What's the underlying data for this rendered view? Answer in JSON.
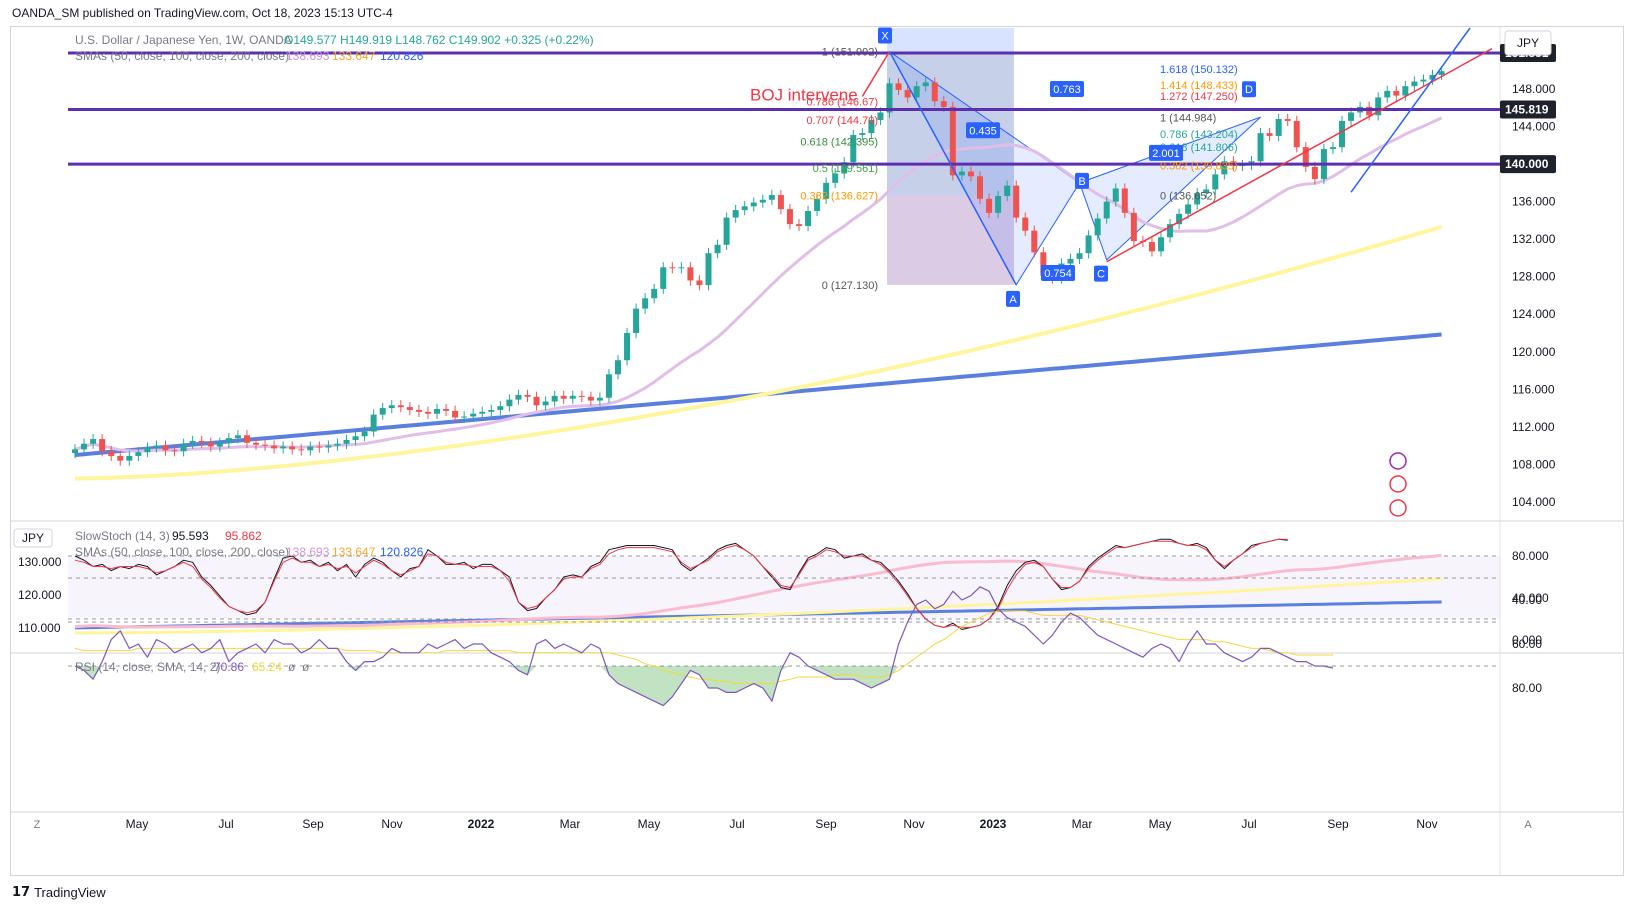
{
  "publisher_line": "OANDA_SM published on TradingView.com, Oct 18, 2023 15:13 UTC-4",
  "footer_brand": "TradingView",
  "currency_button": "JPY",
  "legend": {
    "main_title": "U.S. Dollar / Japanese Yen, 1W, OANDA",
    "ohlc": {
      "o_label": "O",
      "o": "149.577",
      "h_label": "H",
      "h": "149.919",
      "l_label": "L",
      "l": "148.762",
      "c_label": "C",
      "c": "149.902",
      "chg": "+0.325 (+0.22%)"
    },
    "sma_label": "SMAs (50, close, 100, close, 200, close)",
    "sma_values": [
      "138.693",
      "133.647",
      "120.826"
    ],
    "stoch_label": "SlowStoch (14, 3)",
    "stoch_values": [
      "95.593",
      "95.862"
    ],
    "rsi_label": "RSI (14, close, SMA, 14, 2)",
    "rsi_values": [
      "70.86",
      "65.24",
      "ø",
      "ø"
    ],
    "jpy_small": "JPY"
  },
  "colors": {
    "up": "#26a69a",
    "down": "#ef5350",
    "sma50": "#e1bee7",
    "sma100": "#fff59d",
    "sma200": "#5b7fde",
    "hline": "#5b2fae",
    "trend_red": "#f23645",
    "trend_blue": "#2962ff",
    "stoch_k": "#131722",
    "stoch_d": "#f23645",
    "rsi": "#7e57c2",
    "rsi_ma": "#f5d63b"
  },
  "chart_data": [
    {
      "type": "candlestick",
      "title": "U.S. Dollar / Japanese Yen, 1W, OANDA",
      "ylim": [
        102.5,
        154.5
      ],
      "y_ticks": [
        104,
        108,
        112,
        116,
        120,
        124,
        128,
        132,
        136,
        140,
        144,
        148
      ],
      "x_ticks": [
        "May",
        "Jul",
        "Sep",
        "Nov",
        "2022",
        "Mar",
        "May",
        "Jul",
        "Sep",
        "Nov",
        "2023",
        "Mar",
        "May",
        "Jul",
        "Sep",
        "Nov"
      ],
      "candles_close": [
        109.6,
        110.2,
        110.7,
        109.4,
        108.9,
        108.4,
        108.9,
        109.3,
        109.8,
        110.0,
        109.5,
        109.4,
        110.2,
        110.5,
        110.3,
        109.9,
        110.3,
        110.8,
        111.1,
        110.3,
        110.1,
        110.0,
        109.7,
        109.9,
        109.6,
        109.5,
        109.9,
        109.8,
        110.0,
        110.2,
        110.6,
        111.0,
        111.5,
        113.3,
        114.0,
        114.3,
        114.1,
        113.8,
        113.6,
        113.4,
        113.9,
        113.7,
        113.0,
        113.1,
        113.4,
        113.6,
        113.8,
        114.2,
        114.9,
        115.4,
        115.2,
        114.3,
        114.7,
        115.3,
        115.0,
        115.3,
        115.2,
        114.8,
        115.1,
        117.6,
        119.1,
        122.0,
        124.6,
        125.7,
        126.7,
        129.0,
        128.9,
        129.0,
        127.6,
        127.1,
        130.5,
        131.4,
        134.3,
        135.1,
        135.5,
        135.9,
        136.2,
        136.7,
        135.2,
        133.6,
        133.4,
        135.0,
        136.3,
        138.0,
        139.0,
        140.2,
        143.1,
        143.3,
        144.7,
        145.5,
        148.6,
        147.9,
        147.1,
        148.3,
        148.7,
        146.7,
        146.1,
        138.8,
        139.2,
        138.7,
        136.3,
        134.8,
        136.6,
        137.7,
        134.3,
        132.9,
        130.6,
        128.1,
        127.8,
        129.4,
        129.9,
        130.5,
        132.4,
        134.2,
        136.0,
        137.4,
        134.8,
        131.8,
        131.7,
        130.7,
        132.2,
        133.6,
        134.7,
        135.7,
        136.9,
        137.3,
        138.9,
        140.3,
        139.8,
        139.9,
        140.3,
        143.3,
        143.0,
        144.8,
        144.6,
        141.8,
        139.7,
        138.4,
        141.6,
        141.8,
        144.6,
        145.5,
        146.1,
        145.2,
        147.1,
        147.8,
        147.3,
        148.3,
        148.8,
        149.0,
        149.5,
        149.9
      ],
      "horizontal_levels": [
        "151.831",
        "145.819",
        "140.000"
      ],
      "annotation": "BOJ intervene",
      "harmonic_points": [
        "X",
        "A",
        "B",
        "C",
        "D"
      ],
      "harmonic_ratios": [
        "0.763",
        "0.435",
        "0.754",
        "2.001"
      ],
      "fib_levels_left": [
        "1 (151.992)",
        "0.786 (146.67)",
        "0.707 (144.70)",
        "0.618 (142.395)",
        "0.5 (139.561)",
        "0.382 (136.627)",
        "0 (127.130)"
      ],
      "fib_levels_right": [
        "1.618 (150.132)",
        "1.414 (148.433)",
        "1.272 (147.250)",
        "1 (144.984)",
        "0.786 (143.204)",
        "0.618 (141.806)",
        "0.382 (139.835)",
        "0 (136.652)"
      ]
    },
    {
      "type": "line",
      "title": "SlowStoch (14, 3)",
      "ylim": [
        0,
        100
      ],
      "right_ticks": [
        "80.000",
        "40.000",
        "0.000"
      ],
      "left_ticks": [
        "130.000",
        "120.000",
        "110.000"
      ],
      "series": [
        {
          "name": "%K",
          "values": [
            80,
            76,
            70,
            72,
            66,
            70,
            68,
            72,
            70,
            62,
            66,
            70,
            76,
            74,
            60,
            52,
            42,
            32,
            28,
            24,
            26,
            36,
            58,
            78,
            80,
            74,
            76,
            70,
            74,
            66,
            72,
            60,
            72,
            78,
            74,
            66,
            60,
            68,
            70,
            86,
            80,
            72,
            72,
            74,
            68,
            72,
            72,
            66,
            60,
            36,
            28,
            30,
            40,
            48,
            60,
            62,
            60,
            70,
            74,
            86,
            88,
            90,
            90,
            90,
            90,
            88,
            86,
            72,
            66,
            72,
            78,
            86,
            90,
            92,
            86,
            80,
            70,
            60,
            50,
            48,
            64,
            78,
            82,
            88,
            86,
            78,
            80,
            82,
            76,
            74,
            66,
            56,
            44,
            30,
            20,
            14,
            12,
            16,
            10,
            12,
            14,
            20,
            32,
            52,
            66,
            74,
            76,
            70,
            58,
            48,
            50,
            56,
            70,
            78,
            84,
            90,
            88,
            90,
            92,
            94,
            96,
            96,
            92,
            90,
            92,
            88,
            76,
            68,
            76,
            82,
            90,
            92,
            94,
            96,
            95
          ]
        },
        {
          "name": "%D",
          "values": [
            76,
            74,
            70,
            70,
            68,
            70,
            70,
            70,
            68,
            64,
            66,
            70,
            74,
            70,
            58,
            50,
            40,
            32,
            28,
            26,
            28,
            36,
            56,
            74,
            78,
            74,
            74,
            70,
            72,
            68,
            70,
            64,
            70,
            76,
            72,
            66,
            62,
            66,
            70,
            82,
            80,
            74,
            72,
            72,
            70,
            70,
            70,
            66,
            56,
            36,
            30,
            32,
            40,
            48,
            58,
            60,
            60,
            68,
            72,
            82,
            86,
            88,
            88,
            88,
            88,
            86,
            84,
            74,
            68,
            72,
            76,
            84,
            88,
            90,
            86,
            80,
            70,
            62,
            52,
            50,
            62,
            76,
            80,
            86,
            84,
            80,
            80,
            80,
            76,
            72,
            64,
            54,
            42,
            30,
            20,
            14,
            12,
            14,
            12,
            12,
            14,
            20,
            30,
            48,
            62,
            72,
            74,
            70,
            58,
            50,
            50,
            56,
            68,
            76,
            82,
            88,
            88,
            90,
            92,
            94,
            94,
            94,
            92,
            90,
            90,
            86,
            76,
            70,
            76,
            82,
            88,
            92,
            94,
            96,
            96
          ]
        }
      ]
    },
    {
      "type": "line",
      "title": "RSI (14, close, SMA, 14, 2)",
      "ylim": [
        30,
        90
      ],
      "right_ticks": [
        "80.00",
        "60.00",
        "40.00"
      ],
      "series": [
        {
          "name": "RSI",
          "values": [
            70,
            72,
            76,
            68,
            58,
            54,
            62,
            60,
            66,
            58,
            60,
            64,
            62,
            60,
            64,
            62,
            58,
            68,
            64,
            62,
            60,
            64,
            58,
            60,
            60,
            64,
            62,
            58,
            62,
            62,
            68,
            72,
            68,
            68,
            66,
            62,
            64,
            64,
            64,
            60,
            62,
            60,
            58,
            62,
            60,
            60,
            64,
            66,
            68,
            72,
            74,
            60,
            58,
            62,
            60,
            62,
            64,
            60,
            62,
            74,
            78,
            80,
            82,
            84,
            86,
            88,
            84,
            78,
            72,
            74,
            80,
            80,
            82,
            82,
            80,
            78,
            80,
            86,
            72,
            64,
            66,
            70,
            72,
            74,
            76,
            76,
            76,
            78,
            80,
            78,
            76,
            60,
            50,
            42,
            40,
            44,
            42,
            36,
            40,
            38,
            34,
            36,
            44,
            48,
            50,
            52,
            56,
            60,
            56,
            50,
            46,
            48,
            52,
            56,
            58,
            60,
            62,
            64,
            66,
            62,
            60,
            62,
            68,
            60,
            54,
            60,
            60,
            64,
            66,
            68,
            66,
            62,
            62,
            64,
            66,
            68,
            68,
            70,
            70,
            71
          ]
        },
        {
          "name": "SMA",
          "values": [
            62,
            63,
            63,
            63,
            63,
            63,
            63,
            62,
            62,
            62,
            62,
            62,
            62,
            62,
            62,
            62,
            62,
            62,
            62,
            62,
            62,
            62,
            62,
            62,
            62,
            62,
            62,
            62,
            62,
            62,
            63,
            63,
            63,
            63,
            64,
            64,
            64,
            64,
            64,
            64,
            64,
            63,
            63,
            63,
            63,
            63,
            63,
            63,
            63,
            64,
            64,
            64,
            64,
            64,
            64,
            64,
            64,
            64,
            64,
            64,
            65,
            66,
            67,
            69,
            70,
            72,
            73,
            74,
            75,
            76,
            76,
            77,
            77,
            78,
            78,
            78,
            78,
            78,
            77,
            76,
            75,
            75,
            75,
            75,
            74,
            74,
            74,
            75,
            75,
            75,
            74,
            72,
            69,
            66,
            63,
            60,
            58,
            55,
            52,
            50,
            48,
            46,
            45,
            45,
            45,
            45,
            46,
            47,
            47,
            47,
            47,
            47,
            48,
            49,
            50,
            51,
            52,
            53,
            54,
            55,
            56,
            57,
            58,
            58,
            58,
            58,
            59,
            59,
            60,
            61,
            62,
            62,
            63,
            64,
            64,
            65,
            65,
            65,
            65,
            65
          ]
        }
      ]
    }
  ]
}
